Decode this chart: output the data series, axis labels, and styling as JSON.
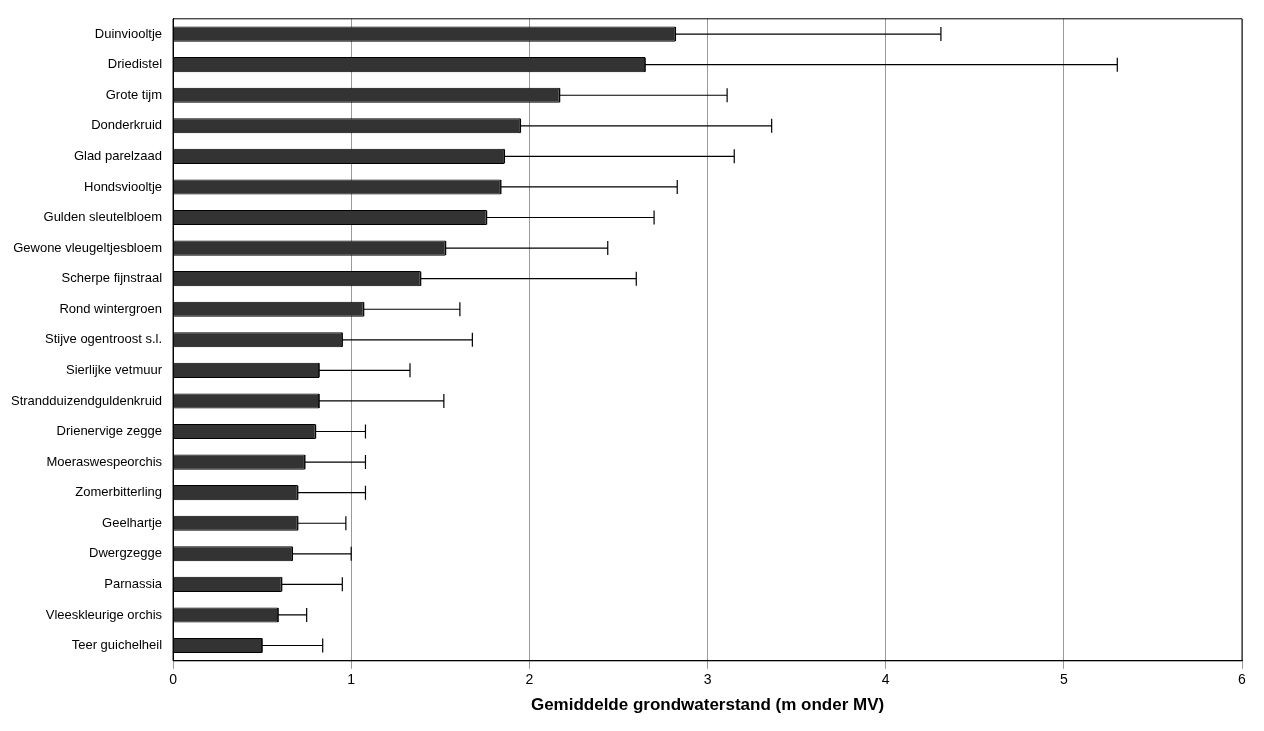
{
  "chart_data": {
    "type": "bar",
    "orientation": "horizontal",
    "xlabel": "Gemiddelde grondwaterstand (m onder MV)",
    "categories": [
      "Duinviooltje",
      "Driedistel",
      "Grote tijm",
      "Donderkruid",
      "Glad parelzaad",
      "Hondsviooltje",
      "Gulden sleutelbloem",
      "Gewone vleugeltjesbloem",
      "Scherpe fijnstraal",
      "Rond wintergroen",
      "Stijve ogentroost s.l.",
      "Sierlijke vetmuur",
      "Strandduizendguldenkruid",
      "Drienervige zegge",
      "Moeraswespeorchis",
      "Zomerbitterling",
      "Geelhartje",
      "Dwergzegge",
      "Parnassia",
      "Vleeskleurige orchis",
      "Teer guichelheil"
    ],
    "values": [
      2.82,
      2.65,
      2.17,
      1.95,
      1.86,
      1.84,
      1.76,
      1.53,
      1.39,
      1.07,
      0.95,
      0.82,
      0.82,
      0.8,
      0.74,
      0.7,
      0.7,
      0.67,
      0.61,
      0.59,
      0.5
    ],
    "errors": [
      [
        2.82,
        4.31
      ],
      [
        2.65,
        5.3
      ],
      [
        2.17,
        3.11
      ],
      [
        1.95,
        3.36
      ],
      [
        1.86,
        3.15
      ],
      [
        1.84,
        2.83
      ],
      [
        1.76,
        2.7
      ],
      [
        1.53,
        2.44
      ],
      [
        1.39,
        2.6
      ],
      [
        1.07,
        1.61
      ],
      [
        0.95,
        1.68
      ],
      [
        0.82,
        1.33
      ],
      [
        0.82,
        1.52
      ],
      [
        0.8,
        1.08
      ],
      [
        0.74,
        1.08
      ],
      [
        0.7,
        1.08
      ],
      [
        0.7,
        0.97
      ],
      [
        0.67,
        1.0
      ],
      [
        0.61,
        0.95
      ],
      [
        0.59,
        0.75
      ],
      [
        0.5,
        0.84
      ]
    ],
    "color": "#333333",
    "xlim": [
      0,
      6
    ],
    "xticks": [
      0,
      1,
      2,
      3,
      4,
      5,
      6
    ],
    "grid": "x",
    "legend": false
  }
}
